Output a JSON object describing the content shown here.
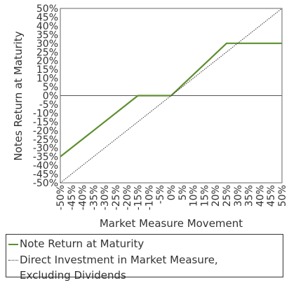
{
  "chart_data": {
    "type": "line",
    "title": "",
    "xlabel": "Market Measure Movement",
    "ylabel": "Notes Return at Maturity",
    "xlim": [
      -50,
      50
    ],
    "ylim": [
      -50,
      50
    ],
    "x_ticks": [
      "-50%",
      "-45%",
      "-40%",
      "-35%",
      "-30%",
      "-25%",
      "-20%",
      "-15%",
      "-10%",
      "-5%",
      "0%",
      "5%",
      "10%",
      "15%",
      "20%",
      "25%",
      "30%",
      "35%",
      "40%",
      "45%",
      "50%"
    ],
    "y_ticks": [
      "50%",
      "45%",
      "40%",
      "35%",
      "30%",
      "25%",
      "20%",
      "15%",
      "10%",
      "5%",
      "0%",
      "-5%",
      "-10%",
      "-15%",
      "-20%",
      "-25%",
      "-30%",
      "-35%",
      "-40%",
      "-45%",
      "-50%"
    ],
    "grid": false,
    "legend_position": "bottom",
    "series": [
      {
        "name": "Note Return at Maturity",
        "color": "#5e8f2f",
        "style": "solid",
        "x": [
          -50,
          -15,
          0,
          25,
          50
        ],
        "y": [
          -35,
          0,
          0,
          30,
          30
        ]
      },
      {
        "name": "Direct Investment in Market Measure,",
        "name_line2": "Excluding Dividends",
        "color": "#333333",
        "style": "dotted",
        "x": [
          -50,
          50
        ],
        "y": [
          -50,
          50
        ]
      }
    ]
  }
}
